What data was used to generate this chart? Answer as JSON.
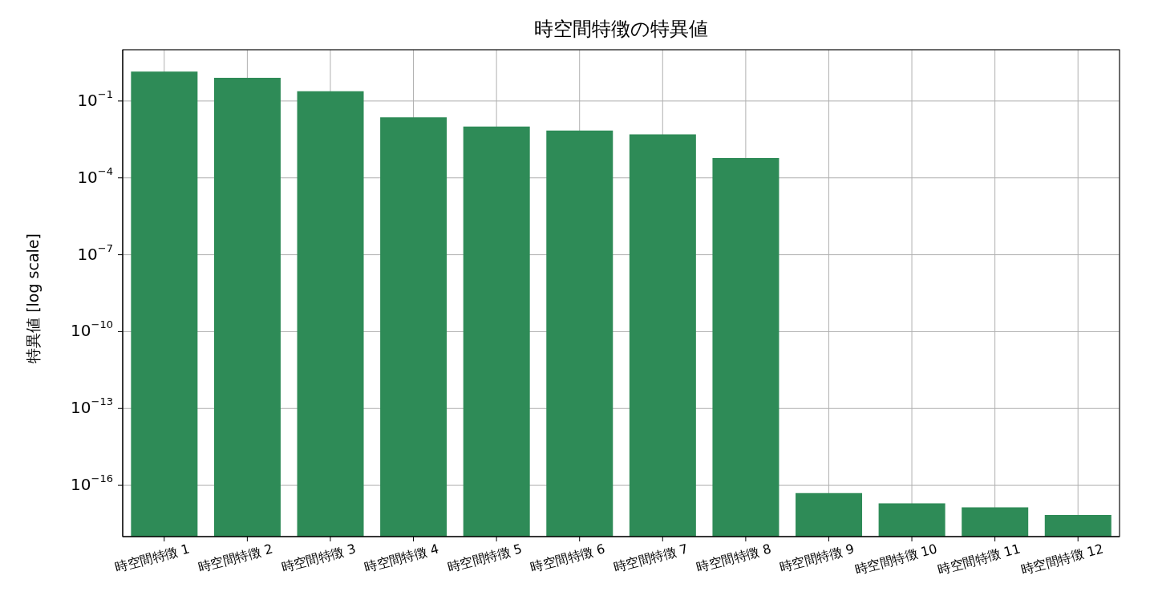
{
  "chart_data": {
    "type": "bar",
    "title": "時空間特徴の特異値",
    "ylabel": "特異値 [log scale]",
    "categories": [
      "時空間特徴 1",
      "時空間特徴 2",
      "時空間特徴 3",
      "時空間特徴 4",
      "時空間特徴 5",
      "時空間特徴 6",
      "時空間特徴 7",
      "時空間特徴 8",
      "時空間特徴 9",
      "時空間特徴 10",
      "時空間特徴 11",
      "時空間特徴 12"
    ],
    "values": [
      1.4,
      0.8,
      0.24,
      0.023,
      0.01,
      0.007,
      0.005,
      0.0006,
      5e-17,
      2e-17,
      1.4e-17,
      7e-18
    ],
    "color": "#2e8b57",
    "log": true,
    "ylim": [
      1e-18,
      10
    ],
    "yticks": [
      {
        "value": 0.1,
        "label": "10$^{−1}$"
      },
      {
        "value": 0.0001,
        "label": "10$^{−4}$"
      },
      {
        "value": 1e-07,
        "label": "10$^{−7}$"
      },
      {
        "value": 1e-10,
        "label": "10$^{−10}$"
      },
      {
        "value": 1e-13,
        "label": "10$^{−13}$"
      },
      {
        "value": 1e-16,
        "label": "10$^{−16}$"
      }
    ],
    "grid": true
  }
}
